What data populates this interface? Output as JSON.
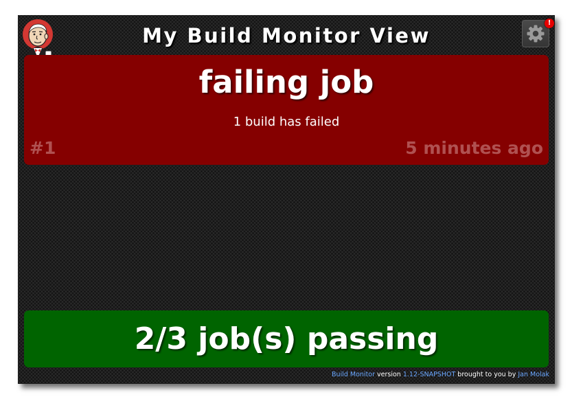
{
  "header": {
    "title": "My Build Monitor View",
    "settings_badge": "!"
  },
  "icons": {
    "logo": "jenkins-butler-logo",
    "settings": "gear-icon"
  },
  "jobs": [
    {
      "name": "failing job",
      "status_text": "1 build has failed",
      "build_number": "#1",
      "time_ago": "5 minutes ago",
      "state": "failing",
      "color": "#850000"
    }
  ],
  "summary": {
    "text": "2/3 job(s) passing",
    "color": "#006400"
  },
  "footer": {
    "product_link": "Build Monitor",
    "version_label": " version ",
    "version_link": "1.12-SNAPSHOT",
    "credit_label": " brought to you by ",
    "author_link": "Jan Molak",
    "link_color": "#6aa7ff"
  }
}
